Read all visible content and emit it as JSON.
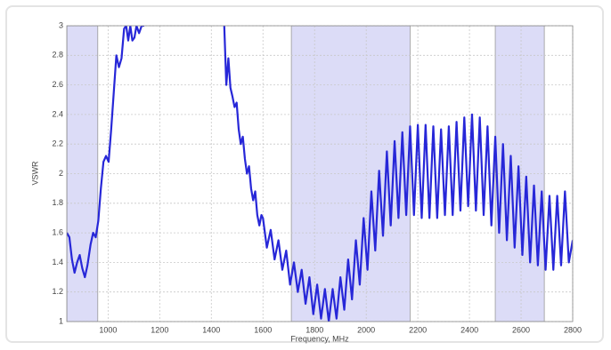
{
  "chart_data": {
    "type": "line",
    "xlabel": "Frequency, MHz",
    "ylabel": "VSWR",
    "xlim": [
      840,
      2800
    ],
    "ylim": [
      1,
      3
    ],
    "xticks": [
      1000,
      1200,
      1400,
      1600,
      1800,
      2000,
      2200,
      2400,
      2600,
      2800
    ],
    "yticks": [
      1,
      1.2,
      1.4,
      1.6,
      1.8,
      2,
      2.2,
      2.4,
      2.6,
      2.8,
      3
    ],
    "grid": true,
    "bands": [
      [
        840,
        960
      ],
      [
        1710,
        2170
      ],
      [
        2500,
        2690
      ]
    ],
    "band_color": "#dcdcf7",
    "x": [
      840,
      850,
      860,
      870,
      880,
      890,
      900,
      910,
      920,
      932,
      942,
      952,
      962,
      972,
      982,
      992,
      1002,
      1012,
      1022,
      1032,
      1042,
      1052,
      1062,
      1070,
      1078,
      1086,
      1094,
      1102,
      1110,
      1120,
      1130,
      1140,
      1300,
      1450,
      1458,
      1466,
      1474,
      1482,
      1490,
      1498,
      1506,
      1514,
      1522,
      1530,
      1538,
      1546,
      1554,
      1562,
      1570,
      1578,
      1586,
      1594,
      1600,
      1615,
      1630,
      1645,
      1660,
      1675,
      1690,
      1705,
      1720,
      1735,
      1750,
      1765,
      1780,
      1795,
      1810,
      1825,
      1840,
      1855,
      1870,
      1885,
      1900,
      1915,
      1930,
      1945,
      1960,
      1975,
      1990,
      2005,
      2020,
      2035,
      2050,
      2065,
      2080,
      2095,
      2110,
      2125,
      2140,
      2155,
      2170,
      2185,
      2200,
      2215,
      2230,
      2245,
      2260,
      2275,
      2290,
      2305,
      2320,
      2335,
      2350,
      2365,
      2380,
      2395,
      2410,
      2425,
      2440,
      2455,
      2470,
      2485,
      2500,
      2515,
      2530,
      2545,
      2560,
      2575,
      2590,
      2605,
      2620,
      2635,
      2650,
      2665,
      2680,
      2695,
      2710,
      2725,
      2740,
      2755,
      2770,
      2785,
      2800
    ],
    "series": [
      {
        "name": "VSWR",
        "color": "#2727d8",
        "values": [
          1.6,
          1.57,
          1.42,
          1.33,
          1.4,
          1.45,
          1.36,
          1.3,
          1.38,
          1.52,
          1.6,
          1.57,
          1.68,
          1.9,
          2.08,
          2.12,
          2.08,
          2.3,
          2.55,
          2.8,
          2.72,
          2.78,
          2.98,
          3,
          2.9,
          3,
          2.9,
          2.92,
          3,
          2.95,
          3,
          3,
          null,
          3,
          2.6,
          2.78,
          2.58,
          2.52,
          2.45,
          2.48,
          2.3,
          2.2,
          2.25,
          2.1,
          2,
          2.05,
          1.9,
          1.82,
          1.88,
          1.72,
          1.65,
          1.72,
          1.7,
          1.5,
          1.62,
          1.42,
          1.55,
          1.35,
          1.48,
          1.25,
          1.4,
          1.2,
          1.35,
          1.12,
          1.3,
          1.05,
          1.25,
          1.02,
          1.22,
          1,
          1.22,
          1.02,
          1.3,
          1.08,
          1.42,
          1.15,
          1.55,
          1.25,
          1.7,
          1.35,
          1.88,
          1.48,
          2.02,
          1.58,
          2.15,
          1.65,
          2.22,
          1.7,
          2.28,
          1.72,
          2.32,
          1.72,
          2.33,
          1.7,
          2.33,
          1.7,
          2.32,
          1.7,
          2.3,
          1.72,
          2.32,
          1.72,
          2.35,
          1.75,
          2.38,
          1.78,
          2.4,
          1.75,
          2.38,
          1.72,
          2.32,
          1.65,
          2.25,
          1.6,
          2.2,
          1.55,
          2.12,
          1.5,
          2.05,
          1.45,
          1.98,
          1.4,
          1.92,
          1.38,
          1.88,
          1.35,
          1.85,
          1.35,
          1.85,
          1.38,
          1.88,
          1.4,
          1.55
        ]
      }
    ]
  }
}
